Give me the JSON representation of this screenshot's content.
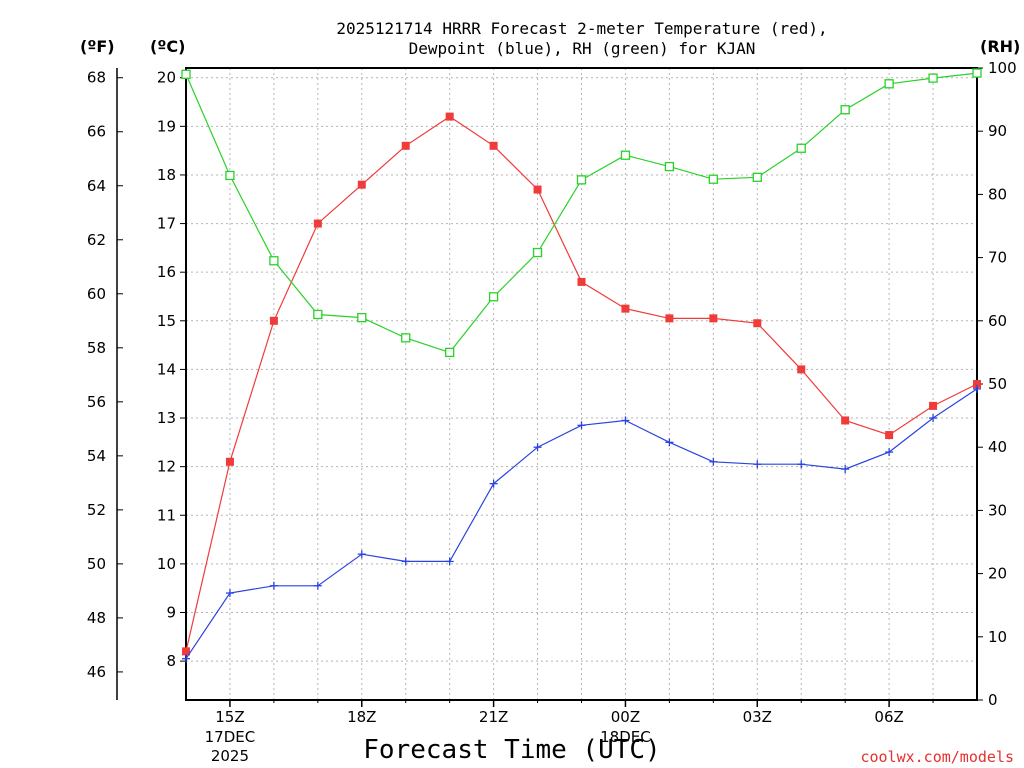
{
  "chart_data": {
    "type": "line",
    "title_lines": [
      "2025121714 HRRR Forecast 2-meter Temperature (red),",
      "Dewpoint (blue), RH (green) for KJAN"
    ],
    "xlabel": "Forecast Time (UTC)",
    "credit": "coolwx.com/models",
    "unit_labels": {
      "fahrenheit": "(ºF)",
      "celsius": "(ºC)",
      "rh": "(RH)"
    },
    "x_hours": [
      14,
      15,
      16,
      17,
      18,
      19,
      20,
      21,
      22,
      23,
      24,
      25,
      26,
      27,
      28,
      29,
      30,
      31,
      32
    ],
    "x_ticks": [
      {
        "hour": 15,
        "label": "15Z",
        "sub": [
          "17DEC",
          "2025"
        ]
      },
      {
        "hour": 18,
        "label": "18Z",
        "sub": []
      },
      {
        "hour": 21,
        "label": "21Z",
        "sub": []
      },
      {
        "hour": 24,
        "label": "00Z",
        "sub": [
          "18DEC"
        ]
      },
      {
        "hour": 27,
        "label": "03Z",
        "sub": []
      },
      {
        "hour": 30,
        "label": "06Z",
        "sub": []
      }
    ],
    "celsius_axis": {
      "ylim": [
        7.2,
        20.2
      ],
      "ticks": [
        "8",
        "9",
        "10",
        "11",
        "12",
        "13",
        "14",
        "15",
        "16",
        "17",
        "18",
        "19",
        "20"
      ]
    },
    "fahrenheit_axis": {
      "ticks": [
        "46",
        "48",
        "50",
        "52",
        "54",
        "56",
        "58",
        "60",
        "62",
        "64",
        "66",
        "68"
      ]
    },
    "rh_axis": {
      "ylim": [
        0,
        100
      ],
      "ticks": [
        "0",
        "10",
        "20",
        "30",
        "40",
        "50",
        "60",
        "70",
        "80",
        "90",
        "100"
      ]
    },
    "grid": true,
    "series": [
      {
        "name": "Temperature",
        "axis": "celsius",
        "color": "#f03b3b",
        "marker": "filled-square",
        "values": [
          8.2,
          12.1,
          15.0,
          17.0,
          17.8,
          18.6,
          19.2,
          18.6,
          17.7,
          15.8,
          15.25,
          15.05,
          15.05,
          14.95,
          14.0,
          12.95,
          12.65,
          13.25,
          13.7
        ]
      },
      {
        "name": "Dewpoint",
        "axis": "celsius",
        "color": "#2a43e0",
        "marker": "plus",
        "values": [
          8.05,
          9.4,
          9.55,
          9.55,
          10.2,
          10.05,
          10.05,
          11.65,
          12.4,
          12.85,
          12.95,
          12.5,
          12.1,
          12.05,
          12.05,
          11.95,
          12.3,
          13.0,
          13.6
        ]
      },
      {
        "name": "RH",
        "axis": "rh",
        "color": "#29d12a",
        "marker": "open-square",
        "values": [
          99,
          83,
          69.5,
          61,
          60.5,
          57.3,
          55,
          63.8,
          70.8,
          82.3,
          86.2,
          84.4,
          82.4,
          82.7,
          87.3,
          93.4,
          97.5,
          98.4,
          99.2
        ]
      }
    ]
  }
}
